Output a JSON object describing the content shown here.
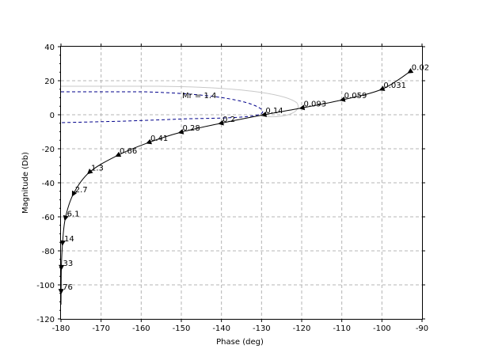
{
  "chart_data": {
    "type": "line",
    "xlabel": "Phase (deg)",
    "ylabel": "Magnitude (Db)",
    "xlim": [
      -180,
      -90
    ],
    "ylim": [
      -120,
      40
    ],
    "xticks": [
      -180,
      -170,
      -160,
      -150,
      -140,
      -130,
      -120,
      -110,
      -100,
      -90
    ],
    "yticks": [
      -120,
      -100,
      -80,
      -60,
      -40,
      -20,
      0,
      20,
      40
    ],
    "grid": true,
    "colors": {
      "curve": "#000000",
      "grid": "#b4b4b4",
      "contour_mr": "#00008b",
      "contour_gray": "#c8c8c8"
    },
    "series": [
      {
        "points": [
          {
            "x": -93,
            "y": 25.3,
            "label": "0.02"
          },
          {
            "x": -100,
            "y": 15.0,
            "label": "0.031"
          },
          {
            "x": -109.8,
            "y": 8.8,
            "label": "0.059"
          },
          {
            "x": -119.9,
            "y": 4.0,
            "label": "0.093"
          },
          {
            "x": -129.4,
            "y": 0.0,
            "label": "0.14"
          },
          {
            "x": -140.1,
            "y": -5.0,
            "label": "0.2"
          },
          {
            "x": -150.1,
            "y": -10.3,
            "label": "0.28"
          },
          {
            "x": -158.1,
            "y": -16.3,
            "label": "0.41"
          },
          {
            "x": -165.8,
            "y": -23.8,
            "label": "0.66"
          },
          {
            "x": -172.9,
            "y": -33.8,
            "label": "1.3"
          },
          {
            "x": -176.9,
            "y": -46.5,
            "label": "2.7"
          },
          {
            "x": -178.9,
            "y": -60.7,
            "label": "6.1"
          },
          {
            "x": -179.6,
            "y": -75.3,
            "label": "14"
          },
          {
            "x": -179.9,
            "y": -89.7,
            "label": "33"
          },
          {
            "x": -179.97,
            "y": -103.8,
            "label": "76"
          }
        ]
      }
    ],
    "annotations": [
      {
        "text": "Mr = 1.4"
      }
    ]
  }
}
